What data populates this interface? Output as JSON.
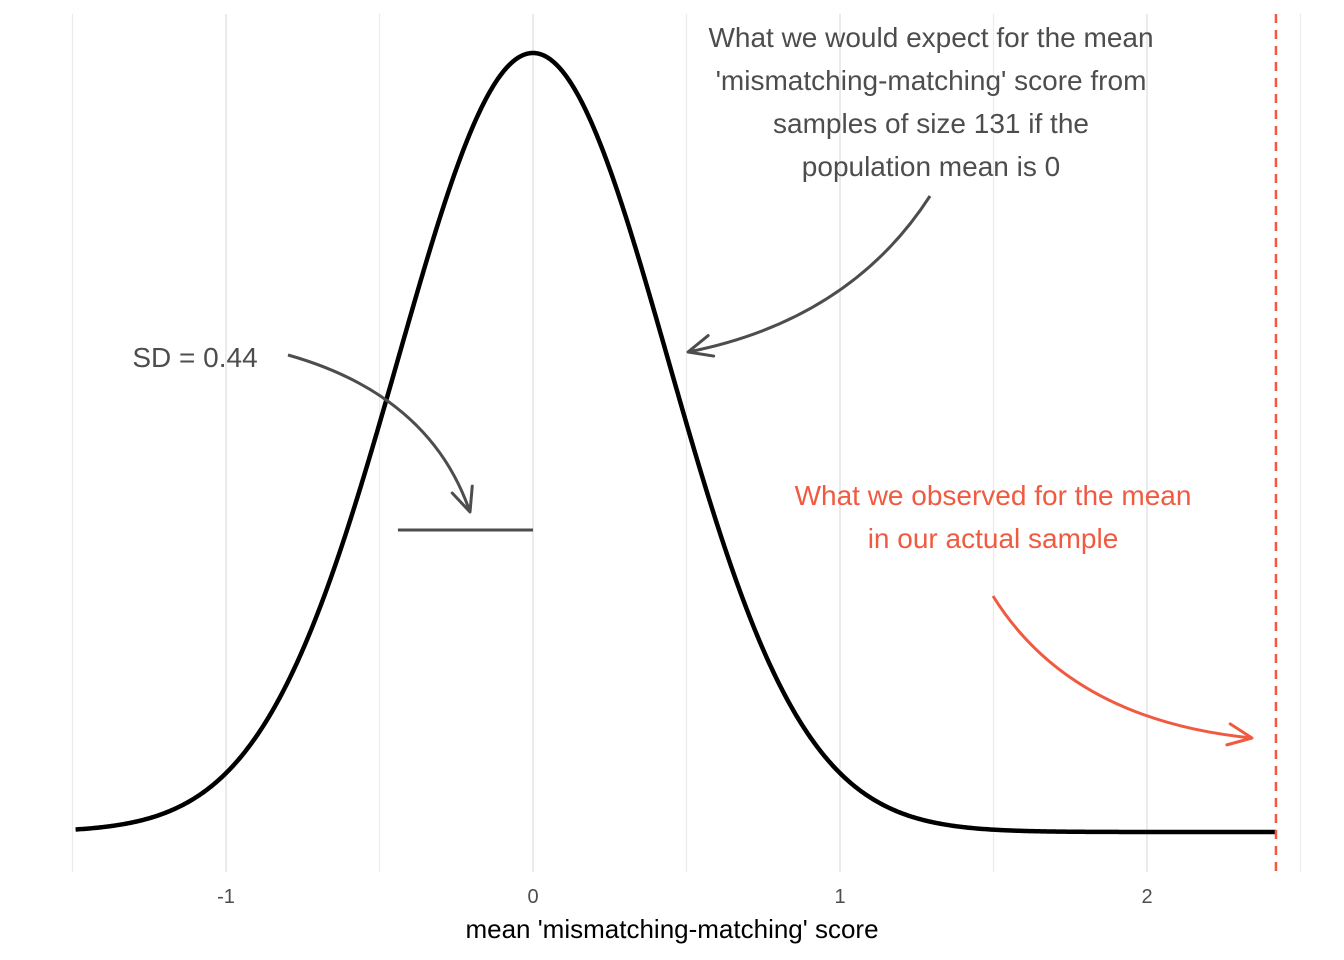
{
  "chart_data": {
    "type": "line",
    "title": "",
    "xlabel": "mean 'mismatching-matching' score",
    "ylabel": "",
    "xlim": [
      -1.5,
      2.5
    ],
    "x_ticks": [
      -1,
      0,
      1,
      2
    ],
    "x_tick_labels": [
      "-1",
      "0",
      "1",
      "2"
    ],
    "grid": "vertical major and minor gridlines",
    "y_axis_shown": false,
    "series": [
      {
        "distribution": "normal",
        "mean": 0,
        "sd": 0.44,
        "color": "#000000"
      }
    ],
    "observed_mean": 2.42,
    "observed_line_color": "#f05a40",
    "observed_line_style": "dashed",
    "sd_segment": {
      "from": -0.44,
      "to": 0
    },
    "annotations": {
      "sd": "SD = 0.44",
      "expected": [
        "What we would expect for the mean",
        "'mismatching-matching' score from",
        "samples of size 131 if the",
        "population mean is 0"
      ],
      "observed": [
        "What we observed for the mean",
        "in our actual sample"
      ]
    },
    "colors": {
      "curve": "#000000",
      "annotation_text": "#4d4d4d",
      "annotation_arrow": "#4d4d4d",
      "observed": "#f05a40",
      "grid": "#ebebeb"
    }
  }
}
